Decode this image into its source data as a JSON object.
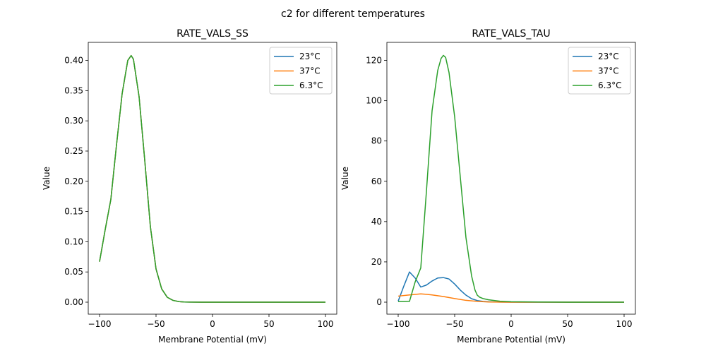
{
  "suptitle": "c2 for different temperatures",
  "chart_data": [
    {
      "type": "line",
      "title": "RATE_VALS_SS",
      "xlabel": "Membrane Potential (mV)",
      "ylabel": "Value",
      "xlim": [
        -100,
        100
      ],
      "ylim": [
        0,
        0.41
      ],
      "xticks": [
        -100,
        -50,
        0,
        50,
        100
      ],
      "yticks": [
        0.0,
        0.05,
        0.1,
        0.15,
        0.2,
        0.25,
        0.3,
        0.35,
        0.4
      ],
      "ytick_labels": [
        "0.00",
        "0.05",
        "0.10",
        "0.15",
        "0.20",
        "0.25",
        "0.30",
        "0.35",
        "0.40"
      ],
      "legend": "top-right",
      "x": [
        -100,
        -95,
        -90,
        -85,
        -80,
        -75,
        -72,
        -70,
        -65,
        -60,
        -55,
        -50,
        -45,
        -40,
        -35,
        -30,
        -25,
        -20,
        -10,
        0,
        50,
        100
      ],
      "series": [
        {
          "name": "23°C",
          "color": "#1f77b4",
          "values": [
            0.067,
            0.12,
            0.17,
            0.26,
            0.345,
            0.4,
            0.408,
            0.402,
            0.34,
            0.235,
            0.125,
            0.055,
            0.022,
            0.008,
            0.003,
            0.001,
            0.0003,
            0.0001,
            0,
            0,
            0,
            0
          ]
        },
        {
          "name": "37°C",
          "color": "#ff7f0e",
          "values": [
            0.067,
            0.12,
            0.17,
            0.26,
            0.345,
            0.4,
            0.408,
            0.402,
            0.34,
            0.235,
            0.125,
            0.055,
            0.022,
            0.008,
            0.003,
            0.001,
            0.0003,
            0.0001,
            0,
            0,
            0,
            0
          ]
        },
        {
          "name": "6.3°C",
          "color": "#2ca02c",
          "values": [
            0.067,
            0.12,
            0.17,
            0.26,
            0.345,
            0.4,
            0.408,
            0.402,
            0.34,
            0.235,
            0.125,
            0.055,
            0.022,
            0.008,
            0.003,
            0.001,
            0.0003,
            0.0001,
            0,
            0,
            0,
            0
          ]
        }
      ]
    },
    {
      "type": "line",
      "title": "RATE_VALS_TAU",
      "xlabel": "Membrane Potential (mV)",
      "ylabel": "Value",
      "xlim": [
        -100,
        100
      ],
      "ylim": [
        0,
        123
      ],
      "xticks": [
        -100,
        -50,
        0,
        50,
        100
      ],
      "yticks": [
        0,
        20,
        40,
        60,
        80,
        100,
        120
      ],
      "ytick_labels": [
        "0",
        "20",
        "40",
        "60",
        "80",
        "100",
        "120"
      ],
      "legend": "top-right",
      "series": [
        {
          "name": "23°C",
          "color": "#1f77b4",
          "x": [
            -100,
            -95,
            -90,
            -85,
            -80,
            -75,
            -70,
            -65,
            -60,
            -55,
            -50,
            -45,
            -40,
            -35,
            -30,
            -25,
            -20,
            -10,
            0,
            50,
            100
          ],
          "values": [
            0.5,
            8,
            15,
            12,
            7.5,
            8.5,
            10.5,
            12,
            12.2,
            11.5,
            9,
            6,
            3.5,
            1.7,
            0.8,
            0.4,
            0.2,
            0.05,
            0.02,
            0,
            0
          ]
        },
        {
          "name": "37°C",
          "color": "#ff7f0e",
          "x": [
            -100,
            -90,
            -80,
            -75,
            -70,
            -60,
            -50,
            -40,
            -30,
            -20,
            0,
            50,
            100
          ],
          "values": [
            3.0,
            3.6,
            4.1,
            3.9,
            3.6,
            2.8,
            1.8,
            0.9,
            0.4,
            0.1,
            0.02,
            0,
            0
          ]
        },
        {
          "name": "6.3°C",
          "color": "#2ca02c",
          "x": [
            -100,
            -95,
            -90,
            -85,
            -80,
            -75,
            -70,
            -65,
            -62,
            -60,
            -58,
            -55,
            -50,
            -45,
            -40,
            -35,
            -32,
            -30,
            -28,
            -25,
            -20,
            -10,
            0,
            50,
            100
          ],
          "values": [
            0.3,
            0.3,
            0.4,
            10,
            17,
            55,
            95,
            115,
            121,
            122.5,
            121.5,
            114,
            92,
            62,
            32,
            13,
            6,
            3.5,
            2.5,
            1.8,
            1.2,
            0.5,
            0.2,
            0,
            0
          ]
        }
      ]
    }
  ]
}
